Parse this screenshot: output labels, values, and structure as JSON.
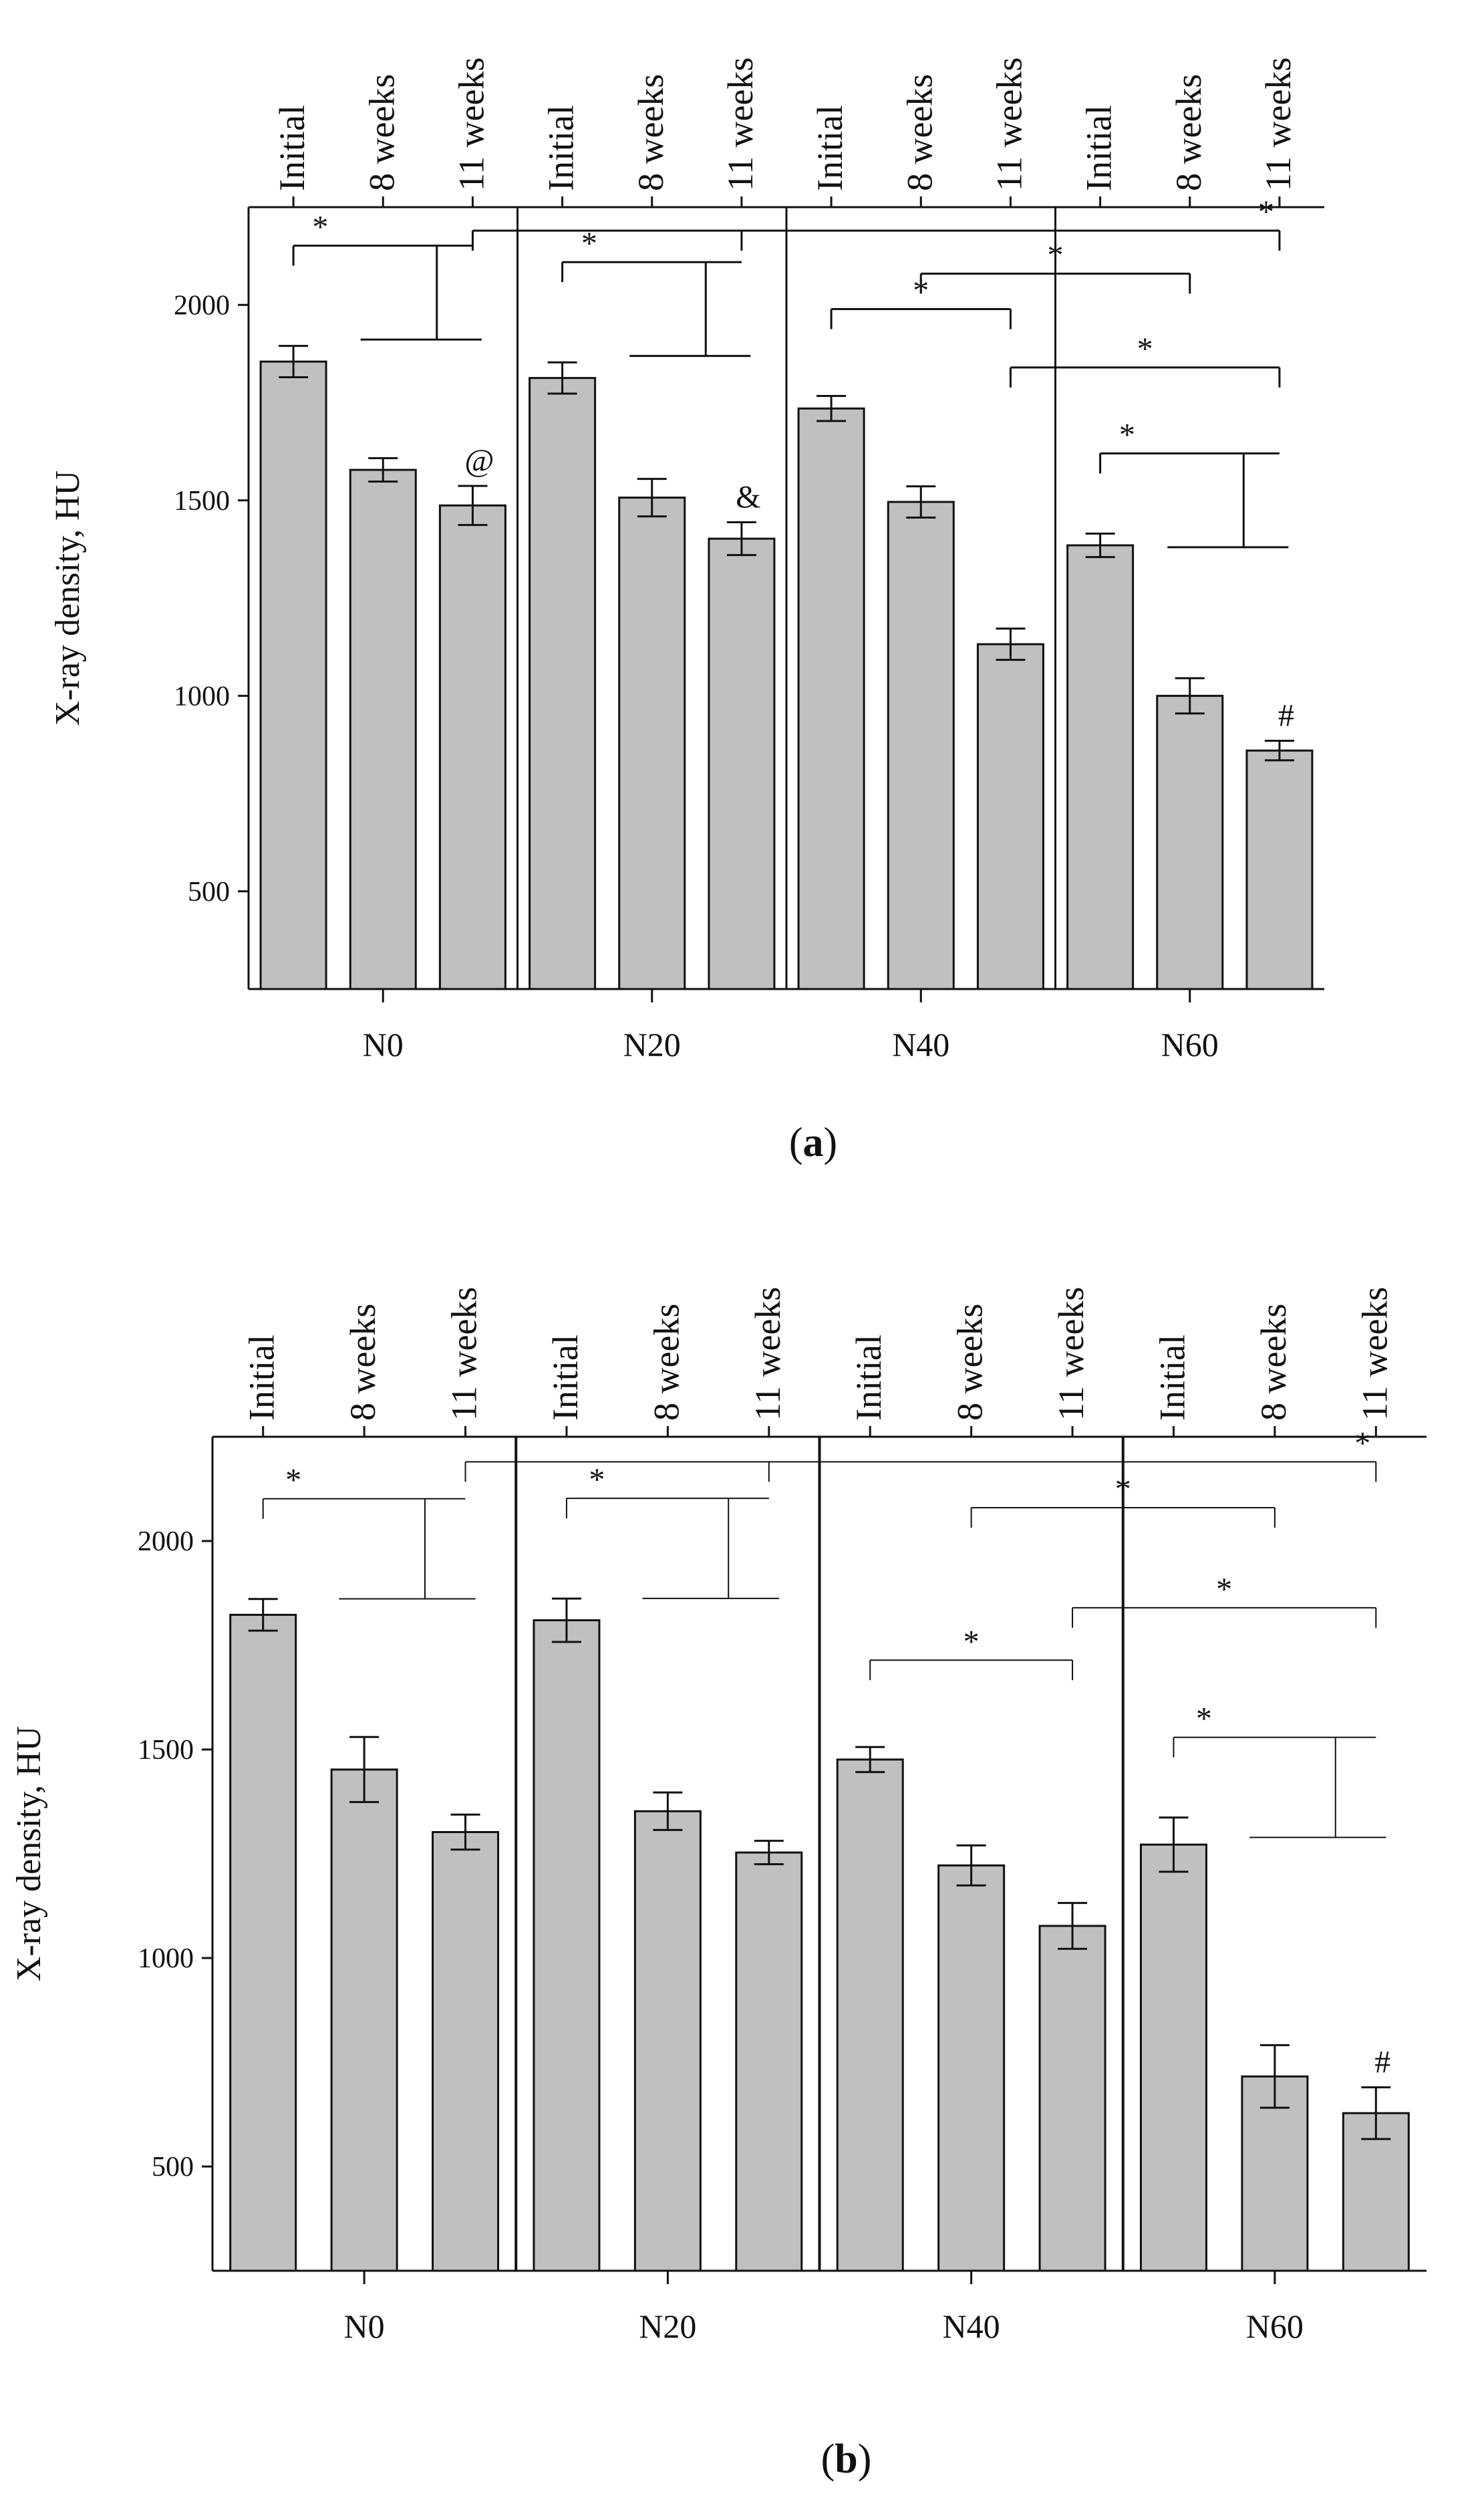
{
  "figure_colors": {
    "bar_fill": "#c0c0c0",
    "stroke": "#111111",
    "background": "#ffffff"
  },
  "chart_data": [
    {
      "type": "bar",
      "panel_label": "a",
      "ylabel": "X-ray density, HU",
      "yticks": [
        500,
        1000,
        1500,
        2000
      ],
      "ylim": [
        250,
        2250
      ],
      "group_labels": [
        "N0",
        "N20",
        "N40",
        "N60"
      ],
      "time_labels": [
        "Initial",
        "8 weeks",
        "11 weeks"
      ],
      "values": [
        1855,
        1578,
        1487,
        1813,
        1507,
        1402,
        1735,
        1496,
        1132,
        1385,
        1000,
        860
      ],
      "errors": [
        40,
        30,
        50,
        40,
        48,
        42,
        32,
        40,
        40,
        30,
        45,
        25
      ],
      "markers": [
        {
          "bar": 2,
          "text": "@"
        },
        {
          "bar": 5,
          "text": "&"
        },
        {
          "bar": 11,
          "text": "#"
        }
      ],
      "significance": [
        {
          "from": [
            0
          ],
          "to": [
            1,
            2
          ],
          "label": "*"
        },
        {
          "from": [
            3
          ],
          "to": [
            4,
            5
          ],
          "label": "*"
        },
        {
          "from": [
            6
          ],
          "to": [
            8
          ],
          "label": "*"
        },
        {
          "from": [
            9
          ],
          "to": [
            10,
            11
          ],
          "label": "*"
        },
        {
          "from": [
            7
          ],
          "to": [
            10
          ],
          "label": "*"
        },
        {
          "from": [
            8
          ],
          "to": [
            11
          ],
          "label": "*"
        },
        {
          "from": [
            2,
            5
          ],
          "to": [
            11
          ],
          "label": "*"
        }
      ]
    },
    {
      "type": "bar",
      "panel_label": "b",
      "ylabel": "X-ray density, HU",
      "yticks": [
        500,
        1000,
        1500,
        2000
      ],
      "ylim": [
        250,
        2250
      ],
      "group_labels": [
        "N0",
        "N20",
        "N40",
        "N60"
      ],
      "time_labels": [
        "Initial",
        "8 weeks",
        "11 weeks"
      ],
      "values": [
        1823,
        1452,
        1302,
        1810,
        1352,
        1253,
        1476,
        1222,
        1077,
        1272,
        716,
        628
      ],
      "errors": [
        38,
        78,
        42,
        52,
        45,
        28,
        30,
        48,
        55,
        65,
        75,
        62
      ],
      "markers": [
        {
          "bar": 11,
          "text": "#"
        }
      ],
      "significance": [
        {
          "from": [
            0
          ],
          "to": [
            1,
            2
          ],
          "label": "*"
        },
        {
          "from": [
            3
          ],
          "to": [
            4,
            5
          ],
          "label": "*"
        },
        {
          "from": [
            6
          ],
          "to": [
            8
          ],
          "label": "*"
        },
        {
          "from": [
            9
          ],
          "to": [
            10,
            11
          ],
          "label": "*"
        },
        {
          "from": [
            7
          ],
          "to": [
            10
          ],
          "label": "*"
        },
        {
          "from": [
            8
          ],
          "to": [
            11
          ],
          "label": "*"
        },
        {
          "from": [
            2,
            5
          ],
          "to": [
            11
          ],
          "label": "*"
        }
      ]
    }
  ]
}
